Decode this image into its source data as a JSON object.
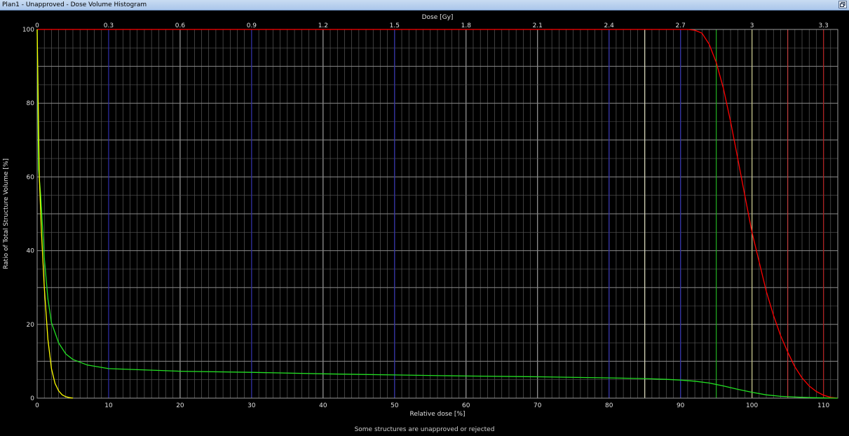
{
  "window": {
    "title": "Plan1 - Unapproved - Dose Volume Histogram",
    "restore_icon": "restore-window-icon"
  },
  "footer": {
    "message": "Some structures are unapproved or rejected"
  },
  "colors": {
    "background": "#000000",
    "grid": "#6a6a6a",
    "grid_major": "#bdbdbd",
    "text": "#e0e0e0"
  },
  "chart_data": {
    "type": "line",
    "title": "",
    "xlabel": "Relative dose [%]",
    "x2label": "Dose [Gy]",
    "ylabel": "Ratio of Total Structure Volume [%]",
    "xlim": [
      0,
      112
    ],
    "ylim": [
      0,
      100
    ],
    "x_ticks": [
      0,
      10,
      20,
      30,
      40,
      50,
      60,
      70,
      80,
      90,
      100,
      110
    ],
    "x2_ticks": [
      "0",
      "0.3",
      "0.6",
      "0.9",
      "1.2",
      "1.5",
      "1.8",
      "2.1",
      "2.4",
      "2.7",
      "3",
      "3.3"
    ],
    "y_ticks": [
      0,
      20,
      40,
      60,
      80,
      100
    ],
    "grid": true,
    "legend": "none",
    "reference_lines": [
      {
        "x": 10,
        "color": "#2a2aa8"
      },
      {
        "x": 30,
        "color": "#2a2aa8"
      },
      {
        "x": 50,
        "color": "#2a2aa8"
      },
      {
        "x": 80,
        "color": "#2a2aa8"
      },
      {
        "x": 90,
        "color": "#2a2aa8"
      },
      {
        "x": 85,
        "color": "#e6e6c8"
      },
      {
        "x": 95,
        "color": "#22b022"
      },
      {
        "x": 100,
        "color": "#c8c88a"
      },
      {
        "x": 105,
        "color": "#c04040"
      },
      {
        "x": 110,
        "color": "#b02020"
      }
    ],
    "series": [
      {
        "color": "#ff0000",
        "x": [
          0,
          85,
          90,
          91,
          92,
          93,
          94,
          95,
          96,
          97,
          98,
          99,
          100,
          101,
          102,
          103,
          104,
          105,
          106,
          107,
          108,
          109,
          110,
          111,
          112
        ],
        "y": [
          100,
          100,
          100,
          100,
          99.8,
          99,
          96,
          91,
          84,
          75,
          65,
          55,
          45,
          37,
          29,
          22.5,
          17,
          12.5,
          8.5,
          5.5,
          3.3,
          1.8,
          0.8,
          0.2,
          0
        ]
      },
      {
        "color": "#22e022",
        "x": [
          0,
          0.2,
          0.5,
          1,
          1.5,
          2,
          3,
          4,
          5,
          7,
          10,
          20,
          30,
          40,
          50,
          60,
          70,
          80,
          85,
          88,
          90,
          92,
          94,
          96,
          98,
          100,
          102,
          104,
          106,
          108,
          110,
          112
        ],
        "y": [
          100,
          62,
          55,
          38,
          27,
          20.5,
          15,
          12,
          10.5,
          9,
          8,
          7.3,
          7,
          6.6,
          6.3,
          6,
          5.8,
          5.5,
          5.3,
          5.1,
          4.9,
          4.6,
          4.1,
          3.3,
          2.4,
          1.6,
          0.9,
          0.5,
          0.3,
          0.15,
          0.05,
          0
        ]
      },
      {
        "color": "#ffff00",
        "x": [
          0,
          0.3,
          0.6,
          1,
          1.5,
          2,
          2.5,
          3,
          3.5,
          4,
          4.5,
          5
        ],
        "y": [
          100,
          60,
          45,
          30,
          16,
          8,
          4,
          2,
          0.9,
          0.4,
          0.15,
          0
        ]
      }
    ]
  }
}
